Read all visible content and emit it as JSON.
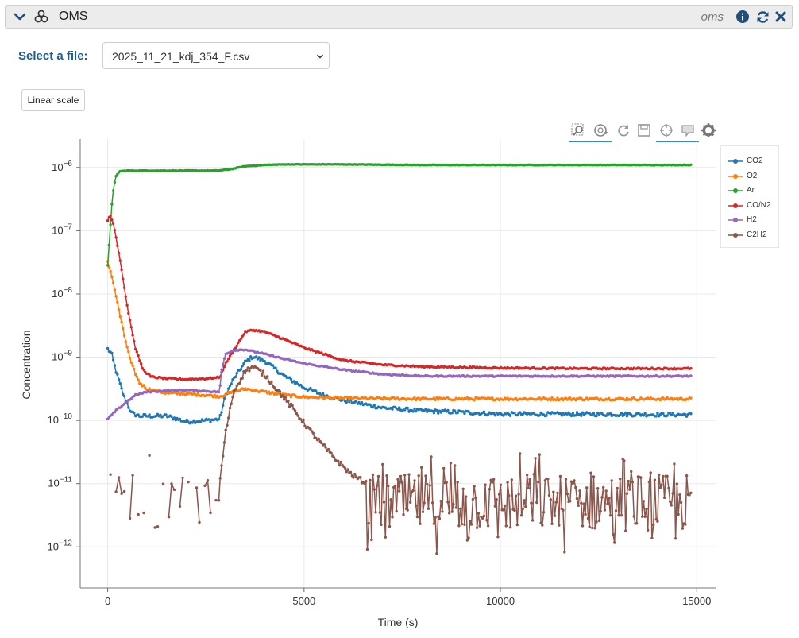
{
  "header": {
    "title": "OMS",
    "subtitle": "oms"
  },
  "file_selector": {
    "label": "Select a file:",
    "selected": "2025_11_21_kdj_354_F.csv"
  },
  "scale_button": {
    "label": "Linear scale"
  },
  "toolbar": {
    "icons": [
      "box-zoom-icon",
      "wheel-zoom-icon",
      "reset-icon",
      "save-icon",
      "crosshair-icon",
      "hover-icon",
      "settings-icon"
    ]
  },
  "chart_data": {
    "type": "line",
    "xlabel": "Time (s)",
    "ylabel": "Concentration",
    "xlim": [
      -700,
      15500
    ],
    "ylim_log10": [
      -12.65,
      -5.55
    ],
    "y_scale": "log",
    "x_ticks": [
      0,
      5000,
      10000,
      15000
    ],
    "x_tick_labels": [
      "0",
      "5000",
      "10000",
      "15000"
    ],
    "y_ticks_log10": [
      -12,
      -11,
      -10,
      -9,
      -8,
      -7,
      -6
    ],
    "y_tick_labels": [
      "10−12",
      "10−11",
      "10−10",
      "10−9",
      "10−8",
      "10−7",
      "10−6"
    ],
    "grid": true,
    "legend_position": "right-top",
    "x_range": [
      0,
      14850
    ],
    "series": [
      {
        "name": "CO2",
        "color": "#1f77b4",
        "points": [
          [
            0,
            -8.87
          ],
          [
            100,
            -8.95
          ],
          [
            200,
            -9.2
          ],
          [
            400,
            -9.6
          ],
          [
            600,
            -9.88
          ],
          [
            800,
            -9.93
          ],
          [
            1000,
            -9.93
          ],
          [
            1500,
            -9.93
          ],
          [
            2000,
            -10.02
          ],
          [
            2500,
            -10.0
          ],
          [
            2850,
            -9.98
          ],
          [
            3000,
            -9.6
          ],
          [
            3200,
            -9.35
          ],
          [
            3500,
            -9.08
          ],
          [
            3700,
            -8.99
          ],
          [
            4000,
            -9.06
          ],
          [
            4500,
            -9.3
          ],
          [
            5000,
            -9.48
          ],
          [
            5500,
            -9.6
          ],
          [
            6000,
            -9.68
          ],
          [
            7000,
            -9.8
          ],
          [
            8000,
            -9.85
          ],
          [
            9000,
            -9.87
          ],
          [
            10000,
            -9.9
          ],
          [
            12000,
            -9.9
          ],
          [
            14850,
            -9.91
          ]
        ],
        "noise": 0.03
      },
      {
        "name": "O2",
        "color": "#ff7f0e",
        "points": [
          [
            0,
            -7.5
          ],
          [
            100,
            -7.7
          ],
          [
            200,
            -8.0
          ],
          [
            400,
            -8.6
          ],
          [
            600,
            -9.1
          ],
          [
            800,
            -9.4
          ],
          [
            1000,
            -9.5
          ],
          [
            1500,
            -9.57
          ],
          [
            2000,
            -9.58
          ],
          [
            2500,
            -9.6
          ],
          [
            2850,
            -9.62
          ],
          [
            3200,
            -9.55
          ],
          [
            3500,
            -9.5
          ],
          [
            4000,
            -9.55
          ],
          [
            4500,
            -9.6
          ],
          [
            5000,
            -9.63
          ],
          [
            6000,
            -9.65
          ],
          [
            8000,
            -9.66
          ],
          [
            10000,
            -9.66
          ],
          [
            12000,
            -9.66
          ],
          [
            14850,
            -9.66
          ]
        ],
        "noise": 0.02
      },
      {
        "name": "Ar",
        "color": "#2ca02c",
        "points": [
          [
            0,
            -7.55
          ],
          [
            60,
            -7.0
          ],
          [
            120,
            -6.45
          ],
          [
            200,
            -6.15
          ],
          [
            300,
            -6.06
          ],
          [
            500,
            -6.05
          ],
          [
            1000,
            -6.05
          ],
          [
            2000,
            -6.05
          ],
          [
            2800,
            -6.05
          ],
          [
            3100,
            -6.03
          ],
          [
            3500,
            -5.98
          ],
          [
            4000,
            -5.96
          ],
          [
            4500,
            -5.95
          ],
          [
            6000,
            -5.95
          ],
          [
            8000,
            -5.96
          ],
          [
            10000,
            -5.96
          ],
          [
            12000,
            -5.96
          ],
          [
            14850,
            -5.96
          ]
        ],
        "noise": 0.004
      },
      {
        "name": "CO/N2",
        "color": "#d62728",
        "points": [
          [
            0,
            -6.85
          ],
          [
            60,
            -6.75
          ],
          [
            150,
            -6.9
          ],
          [
            300,
            -7.4
          ],
          [
            500,
            -8.2
          ],
          [
            700,
            -8.85
          ],
          [
            900,
            -9.2
          ],
          [
            1100,
            -9.31
          ],
          [
            1500,
            -9.34
          ],
          [
            2000,
            -9.35
          ],
          [
            2500,
            -9.34
          ],
          [
            2850,
            -9.32
          ],
          [
            3000,
            -9.1
          ],
          [
            3200,
            -8.9
          ],
          [
            3500,
            -8.6
          ],
          [
            3700,
            -8.57
          ],
          [
            4000,
            -8.6
          ],
          [
            4500,
            -8.72
          ],
          [
            5000,
            -8.85
          ],
          [
            5500,
            -8.95
          ],
          [
            6000,
            -9.05
          ],
          [
            7000,
            -9.12
          ],
          [
            8000,
            -9.15
          ],
          [
            10000,
            -9.17
          ],
          [
            12000,
            -9.18
          ],
          [
            14850,
            -9.18
          ]
        ],
        "noise": 0.012
      },
      {
        "name": "H2",
        "color": "#9467bd",
        "points": [
          [
            0,
            -9.98
          ],
          [
            200,
            -9.85
          ],
          [
            400,
            -9.75
          ],
          [
            700,
            -9.6
          ],
          [
            1000,
            -9.55
          ],
          [
            1500,
            -9.53
          ],
          [
            2000,
            -9.52
          ],
          [
            2850,
            -9.55
          ],
          [
            2900,
            -9.2
          ],
          [
            3000,
            -8.95
          ],
          [
            3200,
            -8.89
          ],
          [
            3500,
            -8.88
          ],
          [
            4000,
            -8.95
          ],
          [
            4500,
            -9.03
          ],
          [
            5000,
            -9.1
          ],
          [
            6000,
            -9.2
          ],
          [
            7000,
            -9.27
          ],
          [
            8000,
            -9.3
          ],
          [
            10000,
            -9.3
          ],
          [
            12000,
            -9.3
          ],
          [
            14850,
            -9.3
          ]
        ],
        "noise": 0.01
      },
      {
        "name": "C2H2",
        "color": "#8c564b",
        "points": [
          [
            2850,
            -11.0
          ],
          [
            3000,
            -10.2
          ],
          [
            3200,
            -9.55
          ],
          [
            3500,
            -9.22
          ],
          [
            3700,
            -9.15
          ],
          [
            4000,
            -9.28
          ],
          [
            4300,
            -9.5
          ],
          [
            4700,
            -9.8
          ],
          [
            5200,
            -10.2
          ],
          [
            5700,
            -10.55
          ],
          [
            6200,
            -10.85
          ],
          [
            6600,
            -11.0
          ]
        ],
        "noise": 0.04,
        "noisy_mean": -11.3,
        "noisy_spread": 0.45
      }
    ]
  }
}
